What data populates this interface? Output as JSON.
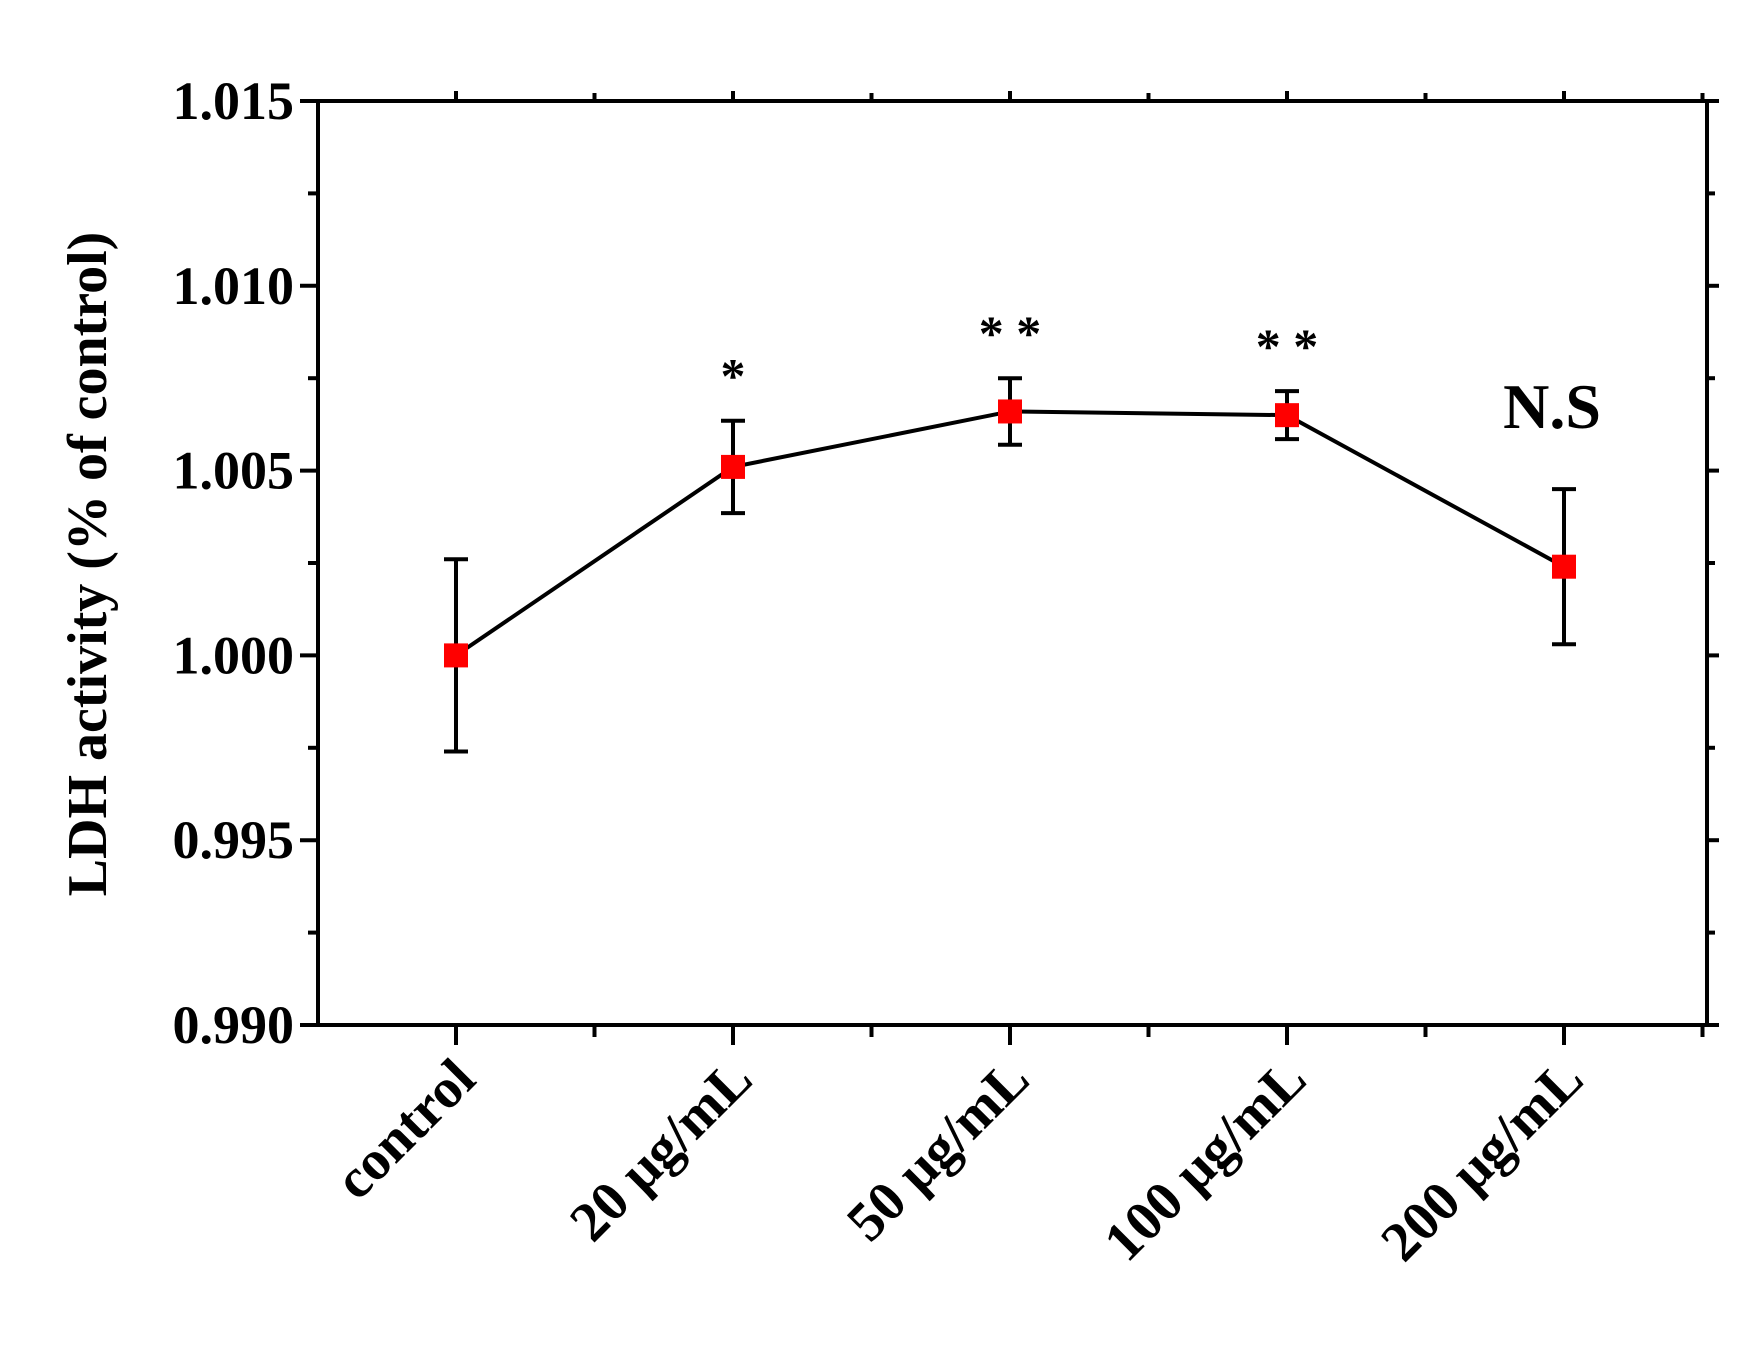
{
  "chart_data": {
    "type": "line",
    "title": "",
    "xlabel": "",
    "ylabel": "LDH activity (% of control)",
    "categories": [
      "control",
      "20 μg/mL",
      "50 μg/mL",
      "100 μg/mL",
      "200 μg/mL"
    ],
    "series": [
      {
        "values": [
          1.0,
          1.0051,
          1.0066,
          1.0065,
          1.0024
        ],
        "errors": [
          0.0026,
          0.00125,
          0.0009,
          0.00065,
          0.0021
        ],
        "marker_color": "#ff0000",
        "line_color": "#000000"
      }
    ],
    "annotations": [
      "",
      "*",
      "* *",
      "* *",
      "N.S"
    ],
    "ylim": [
      0.99,
      1.015
    ],
    "yticks": [
      "0.990",
      "0.995",
      "1.000",
      "1.005",
      "1.010",
      "1.015"
    ],
    "grid": false,
    "legend": "none"
  }
}
